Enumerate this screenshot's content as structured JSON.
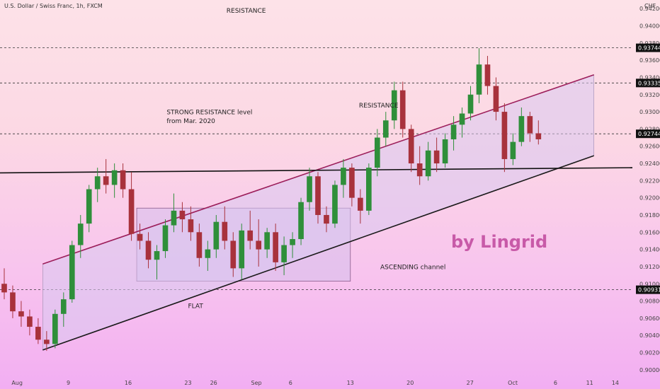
{
  "header": {
    "title": "U.S. Dollar / Swiss Franc, 1h, FXCM",
    "currency": "CHF"
  },
  "watermark": "by Lingrid",
  "colors": {
    "candle_up": "#2f8f3a",
    "candle_down": "#a8323c",
    "channel_line_top": "#9c1e5a",
    "channel_line_bottom": "#1a1a1a",
    "channel_fill": "#d8c8f0",
    "flat_box_fill": "#d9c0ec",
    "watermark": "#c85aa8"
  },
  "chart_data": {
    "type": "candlestick",
    "ylim": [
      0.899,
      0.943
    ],
    "y_ticks": [
      0.9,
      0.902,
      0.904,
      0.906,
      0.908,
      0.91,
      0.912,
      0.914,
      0.916,
      0.918,
      0.92,
      0.922,
      0.924,
      0.926,
      0.928,
      0.93,
      0.932,
      0.934,
      0.936,
      0.938,
      0.94,
      0.942
    ],
    "x_ticks": [
      {
        "label": "Aug",
        "t": 0
      },
      {
        "label": "9",
        "t": 6
      },
      {
        "label": "16",
        "t": 13
      },
      {
        "label": "23",
        "t": 20
      },
      {
        "label": "26",
        "t": 23
      },
      {
        "label": "Sep",
        "t": 28
      },
      {
        "label": "6",
        "t": 32
      },
      {
        "label": "13",
        "t": 39
      },
      {
        "label": "20",
        "t": 46
      },
      {
        "label": "27",
        "t": 53
      },
      {
        "label": "Oct",
        "t": 58
      },
      {
        "label": "6",
        "t": 63
      },
      {
        "label": "11",
        "t": 67
      },
      {
        "label": "14",
        "t": 70
      }
    ],
    "price_labels": [
      {
        "value": "0.93744",
        "y": 0.93744
      },
      {
        "value": "0.93335",
        "y": 0.93335
      },
      {
        "value": "0.92744",
        "y": 0.92744
      },
      {
        "value": "0.90931",
        "y": 0.90931
      }
    ],
    "horizontal_levels": [
      0.93744,
      0.93335,
      0.92744,
      0.90931
    ],
    "support_line": {
      "t0": -2,
      "y0": 0.9229,
      "t1": 72,
      "y1": 0.9235
    },
    "channel": {
      "top": {
        "t0": 3,
        "y0": 0.9123,
        "t1": 67.5,
        "y1": 0.9343
      },
      "bottom": {
        "t0": 3,
        "y0": 0.9023,
        "t1": 67.5,
        "y1": 0.9249
      }
    },
    "flat_box": {
      "t0": 14,
      "t1": 39,
      "y0": 0.9103,
      "y1": 0.9188
    },
    "ohlc": [
      [
        0.91,
        0.9118,
        0.9082,
        0.909
      ],
      [
        0.909,
        0.9098,
        0.906,
        0.9068
      ],
      [
        0.9068,
        0.908,
        0.905,
        0.9062
      ],
      [
        0.9062,
        0.907,
        0.904,
        0.905
      ],
      [
        0.905,
        0.906,
        0.903,
        0.9035
      ],
      [
        0.9035,
        0.9045,
        0.9022,
        0.903
      ],
      [
        0.903,
        0.907,
        0.9025,
        0.9065
      ],
      [
        0.9065,
        0.909,
        0.905,
        0.9082
      ],
      [
        0.9082,
        0.915,
        0.9078,
        0.9145
      ],
      [
        0.9145,
        0.918,
        0.913,
        0.917
      ],
      [
        0.917,
        0.9215,
        0.916,
        0.921
      ],
      [
        0.921,
        0.9235,
        0.9195,
        0.9225
      ],
      [
        0.9225,
        0.9245,
        0.9205,
        0.9215
      ],
      [
        0.9215,
        0.924,
        0.92,
        0.9232
      ],
      [
        0.9232,
        0.924,
        0.92,
        0.921
      ],
      [
        0.921,
        0.923,
        0.915,
        0.9158
      ],
      [
        0.9158,
        0.917,
        0.914,
        0.915
      ],
      [
        0.915,
        0.916,
        0.9118,
        0.9128
      ],
      [
        0.9128,
        0.9145,
        0.9105,
        0.9138
      ],
      [
        0.9138,
        0.9175,
        0.913,
        0.9168
      ],
      [
        0.9168,
        0.9205,
        0.916,
        0.9185
      ],
      [
        0.9185,
        0.9195,
        0.916,
        0.9175
      ],
      [
        0.9175,
        0.919,
        0.915,
        0.916
      ],
      [
        0.916,
        0.917,
        0.912,
        0.913
      ],
      [
        0.913,
        0.915,
        0.9115,
        0.914
      ],
      [
        0.914,
        0.918,
        0.913,
        0.9172
      ],
      [
        0.9172,
        0.919,
        0.914,
        0.915
      ],
      [
        0.915,
        0.916,
        0.9108,
        0.9118
      ],
      [
        0.9118,
        0.917,
        0.9105,
        0.9162
      ],
      [
        0.9162,
        0.9185,
        0.914,
        0.915
      ],
      [
        0.915,
        0.9175,
        0.912,
        0.914
      ],
      [
        0.914,
        0.9165,
        0.913,
        0.916
      ],
      [
        0.916,
        0.917,
        0.9115,
        0.9125
      ],
      [
        0.9125,
        0.9155,
        0.911,
        0.9145
      ],
      [
        0.9145,
        0.916,
        0.913,
        0.9152
      ],
      [
        0.9152,
        0.92,
        0.9145,
        0.9195
      ],
      [
        0.9195,
        0.9235,
        0.9185,
        0.9225
      ],
      [
        0.9225,
        0.923,
        0.917,
        0.918
      ],
      [
        0.918,
        0.919,
        0.916,
        0.917
      ],
      [
        0.917,
        0.922,
        0.9165,
        0.9215
      ],
      [
        0.9215,
        0.9245,
        0.92,
        0.9235
      ],
      [
        0.9235,
        0.924,
        0.919,
        0.92
      ],
      [
        0.92,
        0.921,
        0.917,
        0.9185
      ],
      [
        0.9185,
        0.924,
        0.918,
        0.9235
      ],
      [
        0.9235,
        0.928,
        0.9225,
        0.927
      ],
      [
        0.927,
        0.93,
        0.926,
        0.929
      ],
      [
        0.929,
        0.9335,
        0.928,
        0.9325
      ],
      [
        0.9325,
        0.9335,
        0.927,
        0.928
      ],
      [
        0.928,
        0.9285,
        0.923,
        0.924
      ],
      [
        0.924,
        0.926,
        0.9215,
        0.9225
      ],
      [
        0.9225,
        0.9265,
        0.922,
        0.9255
      ],
      [
        0.9255,
        0.927,
        0.923,
        0.924
      ],
      [
        0.924,
        0.9275,
        0.9235,
        0.9268
      ],
      [
        0.9268,
        0.9295,
        0.9255,
        0.9285
      ],
      [
        0.9285,
        0.9305,
        0.927,
        0.9298
      ],
      [
        0.9298,
        0.933,
        0.929,
        0.932
      ],
      [
        0.932,
        0.9374,
        0.931,
        0.9355
      ],
      [
        0.9355,
        0.9365,
        0.932,
        0.933
      ],
      [
        0.933,
        0.934,
        0.929,
        0.93
      ],
      [
        0.93,
        0.931,
        0.923,
        0.9245
      ],
      [
        0.9245,
        0.9275,
        0.9238,
        0.9265
      ],
      [
        0.9265,
        0.9305,
        0.926,
        0.9295
      ],
      [
        0.9295,
        0.93,
        0.9265,
        0.9275
      ],
      [
        0.9275,
        0.929,
        0.9262,
        0.9268
      ]
    ],
    "annotations": [
      {
        "text": "RESISTANCE",
        "t": 24.5,
        "y": 0.9415
      },
      {
        "text": "RESISTANCE",
        "t": 40.0,
        "y": 0.9305
      },
      {
        "text": "STRONG RESISTANCE level",
        "t": 17.5,
        "y": 0.9297
      },
      {
        "text": "from Mar. 2020",
        "t": 17.5,
        "y": 0.9287
      },
      {
        "text": "ASCENDING channel",
        "t": 42.5,
        "y": 0.9117
      },
      {
        "text": "FLAT",
        "t": 20.0,
        "y": 0.9072
      }
    ]
  }
}
